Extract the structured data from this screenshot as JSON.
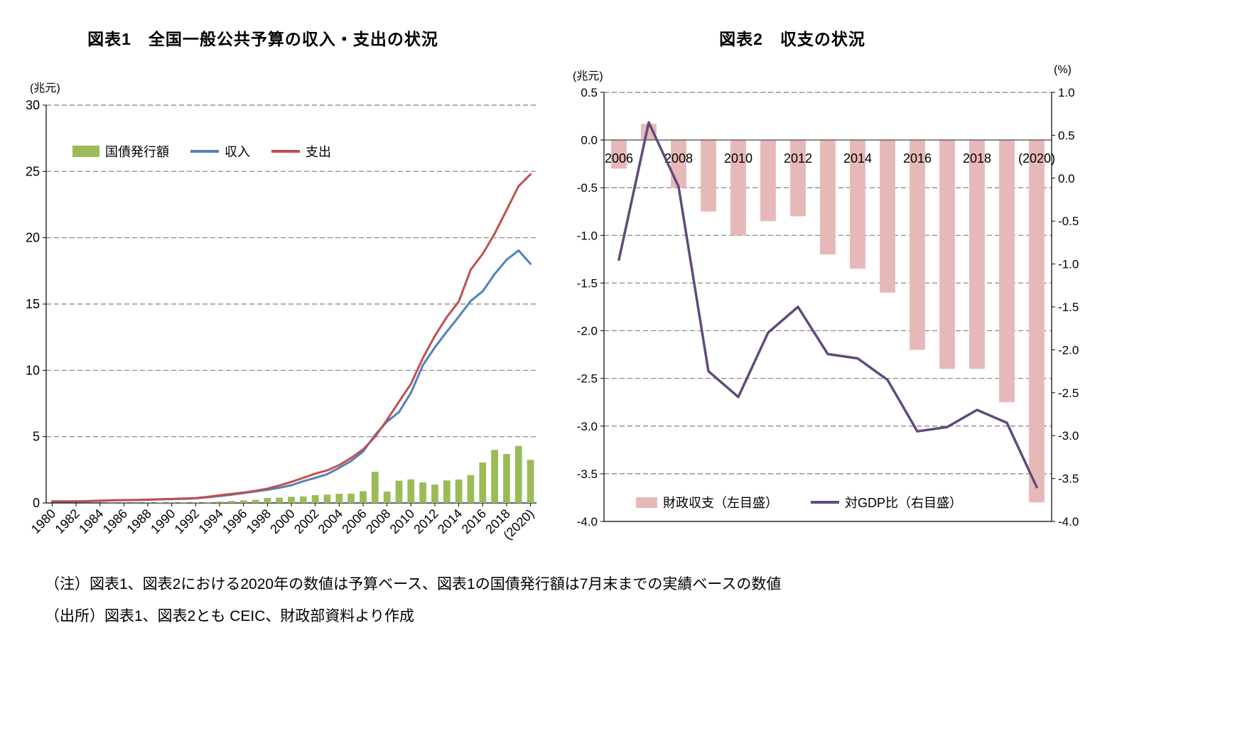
{
  "figure1": {
    "title": "図表1　全国一般公共予算の収入・支出の状況",
    "unit": "(兆元)",
    "legend": [
      {
        "label": "国債発行額",
        "type": "bar",
        "color": "#9BBB59"
      },
      {
        "label": "収入",
        "type": "line",
        "color": "#4F81BD"
      },
      {
        "label": "支出",
        "type": "line",
        "color": "#C0504D"
      }
    ]
  },
  "figure2": {
    "title": "図表2　収支の状況",
    "left_unit": "(兆元)",
    "right_unit": "(%)",
    "legend": [
      {
        "label": "財政収支（左目盛）",
        "type": "bar",
        "color": "#E6B9B8"
      },
      {
        "label": "対GDP比（右目盛）",
        "type": "line",
        "color": "#604A7B"
      }
    ]
  },
  "notes": {
    "note": "（注）図表1、図表2における2020年の数値は予算ベース、図表1の国債発行額は7月末までの実績ベースの数値",
    "source": "（出所）図表1、図表2とも CEIC、財政部資料より作成"
  },
  "colors": {
    "bond_bar": "#9BBB59",
    "revenue_line": "#4F81BD",
    "expenditure_line": "#C0504D",
    "balance_bar": "#E6B9B8",
    "gdp_ratio_line": "#604A7B",
    "gridline": "#7f7f7f",
    "axis": "#000000",
    "zero_line": "#595959"
  },
  "chart_data": [
    {
      "type": "bar",
      "title": "図表1　全国一般公共予算の収入・支出の状況",
      "ylabel": "兆元",
      "ylim": [
        0,
        30
      ],
      "ytick_step": 5,
      "grid": true,
      "legend_position": "upper-left-inside",
      "x": [
        1980,
        1981,
        1982,
        1983,
        1984,
        1985,
        1986,
        1987,
        1988,
        1989,
        1990,
        1991,
        1992,
        1993,
        1994,
        1995,
        1996,
        1997,
        1998,
        1999,
        2000,
        2001,
        2002,
        2003,
        2004,
        2005,
        2006,
        2007,
        2008,
        2009,
        2010,
        2011,
        2012,
        2013,
        2014,
        2015,
        2016,
        2017,
        2018,
        2019,
        2020
      ],
      "xtick_every": 2,
      "xtick_labels": [
        "1980",
        "1982",
        "1984",
        "1986",
        "1988",
        "1990",
        "1992",
        "1994",
        "1996",
        "1998",
        "2000",
        "2002",
        "2004",
        "2006",
        "2008",
        "2010",
        "2012",
        "2014",
        "2016",
        "2018",
        "(2020)"
      ],
      "series": [
        {
          "name": "国債発行額",
          "type": "bar",
          "color": "#9BBB59",
          "values": [
            0.0,
            0.0,
            0.0,
            0.0,
            0.0,
            0.01,
            0.01,
            0.01,
            0.02,
            0.03,
            0.02,
            0.03,
            0.05,
            0.04,
            0.1,
            0.15,
            0.19,
            0.24,
            0.38,
            0.4,
            0.47,
            0.49,
            0.59,
            0.63,
            0.69,
            0.7,
            0.89,
            2.35,
            0.86,
            1.68,
            1.78,
            1.55,
            1.39,
            1.7,
            1.77,
            2.1,
            3.05,
            4.0,
            3.7,
            4.3,
            3.25
          ]
        },
        {
          "name": "収入",
          "type": "line",
          "color": "#4F81BD",
          "values": [
            0.12,
            0.12,
            0.12,
            0.14,
            0.16,
            0.2,
            0.21,
            0.22,
            0.24,
            0.27,
            0.29,
            0.31,
            0.35,
            0.43,
            0.52,
            0.62,
            0.74,
            0.87,
            0.99,
            1.14,
            1.34,
            1.64,
            1.89,
            2.17,
            2.64,
            3.16,
            3.88,
            5.13,
            6.13,
            6.85,
            8.31,
            10.39,
            11.73,
            12.92,
            14.04,
            15.23,
            15.96,
            17.26,
            18.34,
            19.04,
            18.03
          ]
        },
        {
          "name": "支出",
          "type": "line",
          "color": "#C0504D",
          "values": [
            0.12,
            0.11,
            0.12,
            0.14,
            0.17,
            0.2,
            0.22,
            0.23,
            0.25,
            0.28,
            0.31,
            0.34,
            0.37,
            0.46,
            0.58,
            0.68,
            0.79,
            0.92,
            1.08,
            1.32,
            1.59,
            1.89,
            2.21,
            2.46,
            2.85,
            3.39,
            4.04,
            4.98,
            6.26,
            7.63,
            8.98,
            10.93,
            12.6,
            14.02,
            15.18,
            17.59,
            18.78,
            20.31,
            22.09,
            23.89,
            24.79
          ]
        }
      ]
    },
    {
      "type": "bar",
      "title": "図表2　収支の状況",
      "grid": true,
      "legend_position": "bottom-inside",
      "left_axis": {
        "label": "兆元",
        "min": -4.0,
        "max": 0.5,
        "ticks": [
          "0.5",
          "0.0",
          "-0.5",
          "-1.0",
          "-1.5",
          "-2.0",
          "-2.5",
          "-3.0",
          "-3.5",
          "-4.0"
        ]
      },
      "right_axis": {
        "label": "%",
        "min": -4.0,
        "max": 1.0,
        "ticks": [
          "1.0",
          "0.5",
          "0.0",
          "-0.5",
          "-1.0",
          "-1.5",
          "-2.0",
          "-2.5",
          "-3.0",
          "-3.5",
          "-4.0"
        ]
      },
      "x": [
        2006,
        2007,
        2008,
        2009,
        2010,
        2011,
        2012,
        2013,
        2014,
        2015,
        2016,
        2017,
        2018,
        2019,
        2020
      ],
      "xtick_every": 2,
      "xtick_labels": [
        "2006",
        "2008",
        "2010",
        "2012",
        "2014",
        "2016",
        "2018",
        "(2020)"
      ],
      "series": [
        {
          "name": "財政収支（左目盛）",
          "type": "bar",
          "axis": "left",
          "color": "#E6B9B8",
          "values": [
            -0.3,
            0.17,
            -0.5,
            -0.75,
            -1.0,
            -0.85,
            -0.8,
            -1.2,
            -1.35,
            -1.6,
            -2.2,
            -2.4,
            -2.4,
            -2.75,
            -3.8
          ]
        },
        {
          "name": "対GDP比（右目盛）",
          "type": "line",
          "axis": "right",
          "color": "#604A7B",
          "values": [
            -0.95,
            0.65,
            -0.1,
            -2.25,
            -2.55,
            -1.8,
            -1.5,
            -2.05,
            -2.1,
            -2.35,
            -2.95,
            -2.9,
            -2.7,
            -2.85,
            -3.6
          ]
        }
      ]
    }
  ]
}
